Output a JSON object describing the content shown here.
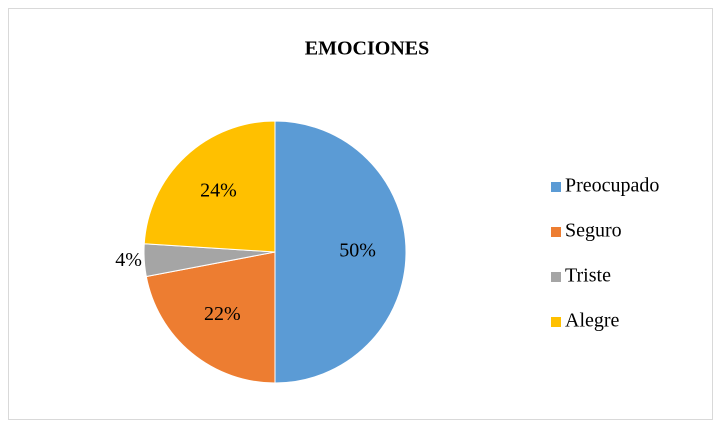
{
  "chart_data": {
    "type": "pie",
    "title": "EMOCIONES",
    "categories": [
      "Preocupado",
      "Seguro",
      "Triste",
      "Alegre"
    ],
    "values": [
      50,
      22,
      4,
      24
    ],
    "value_labels": [
      "50%",
      "22%",
      "4%",
      "24%"
    ],
    "colors": [
      "#5b9bd5",
      "#ed7d31",
      "#a5a5a5",
      "#ffc000"
    ],
    "legend": "right"
  }
}
